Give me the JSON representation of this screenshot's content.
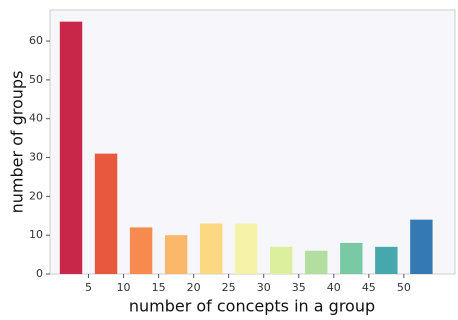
{
  "chart_data": {
    "type": "histogram",
    "xlabel": "number of concepts in a group",
    "ylabel": "number of groups",
    "bins": [
      0,
      5,
      10,
      15,
      20,
      25,
      30,
      35,
      40,
      45,
      50,
      55
    ],
    "values": [
      65,
      31,
      12,
      10,
      13,
      13,
      7,
      6,
      8,
      7,
      14
    ],
    "colors": [
      "#c8274a",
      "#e8583f",
      "#f68a4f",
      "#fbb86a",
      "#fcd883",
      "#f6f2a8",
      "#dcef9c",
      "#b2dfa0",
      "#79c9a4",
      "#45a8ac",
      "#3579b4"
    ],
    "xlim": [
      -0.5,
      57.3
    ],
    "xticks": [
      5,
      10,
      15,
      20,
      25,
      30,
      35,
      40,
      45,
      50
    ],
    "ylim": [
      0,
      68
    ],
    "yticks": [
      0,
      10,
      20,
      30,
      40,
      50,
      60
    ]
  }
}
